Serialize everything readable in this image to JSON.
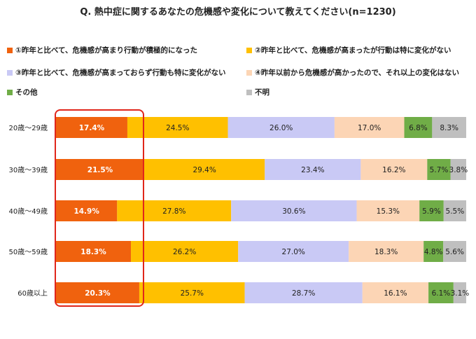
{
  "title": "Q.  熱中症に関するあなたの危機感や変化について教えてください(n=1230)",
  "chart_data": {
    "type": "bar",
    "orientation": "horizontal",
    "stacked": "percent",
    "categories": [
      "20歳～29歳",
      "30歳～39歳",
      "40歳～49歳",
      "50歳～59歳",
      "60歳以上"
    ],
    "series": [
      {
        "name": "①昨年と比べて、危機感が高まり行動が積極的になった",
        "color": "#f0620e",
        "values": [
          17.4,
          21.5,
          14.9,
          18.3,
          20.3
        ],
        "labels": [
          "17.4%",
          "21.5%",
          "14.9%",
          "18.3%",
          "20.3%"
        ]
      },
      {
        "name": "②昨年と比べて、危機感が高まったが行動は特に変化がない",
        "color": "#ffc000",
        "values": [
          24.5,
          29.4,
          27.8,
          26.2,
          25.7
        ],
        "labels": [
          "24.5%",
          "29.4%",
          "27.8%",
          "26.2%",
          "25.7%"
        ]
      },
      {
        "name": "③昨年と比べて、危機感が高まっておらず行動も特に変化がない",
        "color": "#c9c9f5",
        "values": [
          26.0,
          23.4,
          30.6,
          27.0,
          28.7
        ],
        "labels": [
          "26.0%",
          "23.4%",
          "30.6%",
          "27.0%",
          "28.7%"
        ]
      },
      {
        "name": "④昨年以前から危機感が高かったので、それ以上の変化はない",
        "color": "#fcd5b5",
        "values": [
          17.0,
          16.2,
          15.3,
          18.3,
          16.1
        ],
        "labels": [
          "17.0%",
          "16.2%",
          "15.3%",
          "18.3%",
          "16.1%"
        ]
      },
      {
        "name": "その他",
        "color": "#70ad47",
        "values": [
          6.8,
          5.7,
          5.9,
          4.8,
          6.1
        ],
        "labels": [
          "6.8%",
          "5.7%",
          "5.9%",
          "4.8%",
          "6.1%"
        ]
      },
      {
        "name": "不明",
        "color": "#bfbfbf",
        "values": [
          8.3,
          3.8,
          5.5,
          5.6,
          3.1
        ],
        "labels": [
          "8.3%",
          "3.8%",
          "5.5%",
          "5.6%",
          "3.1%"
        ]
      }
    ],
    "highlight": {
      "series_index": 0,
      "border_color": "#e0261b"
    },
    "legend_position": "top",
    "grid": false
  }
}
